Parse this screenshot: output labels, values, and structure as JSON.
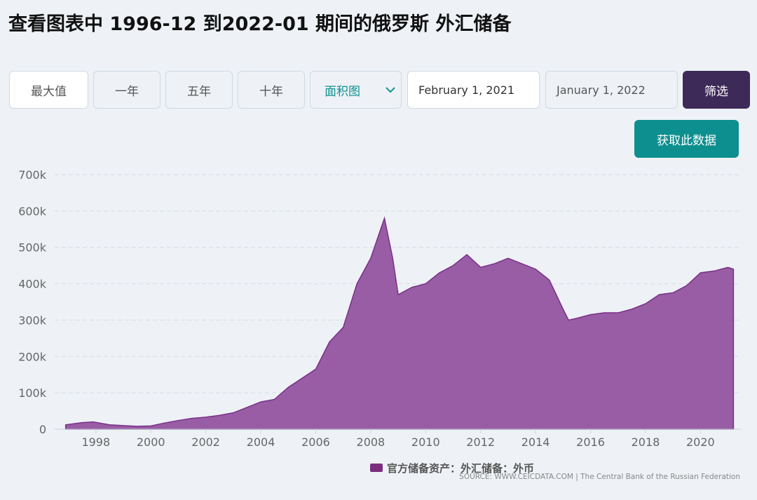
{
  "header": {
    "title": "查看图表中 1996-12 到2022-01 期间的俄罗斯 外汇储备"
  },
  "controls": {
    "buttons": [
      "最大值",
      "一年",
      "五年",
      "十年"
    ],
    "chart_type": "面积图",
    "date_from": "February 1, 2021",
    "date_to": "January 1, 2022",
    "filter": "筛选",
    "get_data": "获取此数据"
  },
  "chart_data": {
    "type": "area",
    "color": "#8e4c9c",
    "line_color": "#7a3088",
    "grid": true,
    "x": [
      1996.9,
      1997.5,
      1997.9,
      1998.5,
      1999.0,
      1999.5,
      2000.0,
      2000.5,
      2001.0,
      2001.5,
      2002.0,
      2002.5,
      2003.0,
      2003.5,
      2004.0,
      2004.5,
      2005.0,
      2005.5,
      2006.0,
      2006.5,
      2007.0,
      2007.5,
      2008.0,
      2008.5,
      2008.8,
      2009.0,
      2009.5,
      2010.0,
      2010.5,
      2011.0,
      2011.5,
      2012.0,
      2012.5,
      2013.0,
      2013.5,
      2014.0,
      2014.5,
      2015.0,
      2015.2,
      2015.5,
      2016.0,
      2016.5,
      2017.0,
      2017.5,
      2018.0,
      2018.5,
      2019.0,
      2019.5,
      2020.0,
      2020.5,
      2021.0,
      2021.2
    ],
    "series": [
      {
        "name": "官方储备资产：外汇储备：外币",
        "color": "#7b2d7f",
        "values": [
          12000,
          18000,
          20000,
          12000,
          10000,
          8000,
          9000,
          17000,
          24000,
          30000,
          33000,
          38000,
          45000,
          60000,
          75000,
          82000,
          115000,
          140000,
          165000,
          240000,
          280000,
          400000,
          470000,
          580000,
          470000,
          370000,
          390000,
          400000,
          430000,
          450000,
          480000,
          445000,
          455000,
          470000,
          455000,
          440000,
          410000,
          330000,
          300000,
          305000,
          315000,
          320000,
          320000,
          330000,
          345000,
          370000,
          375000,
          395000,
          430000,
          435000,
          445000,
          440000
        ]
      }
    ],
    "xlim": [
      1996.5,
      2021.47
    ],
    "xticks": [
      1998,
      2000,
      2002,
      2004,
      2006,
      2008,
      2010,
      2012,
      2014,
      2016,
      2018,
      2020
    ],
    "ylim": [
      0,
      700000
    ],
    "yticks": [
      0,
      {
        "value": 100000,
        "label": "100k"
      },
      {
        "value": 200000,
        "label": "200k"
      },
      {
        "value": 300000,
        "label": "300k"
      },
      {
        "value": 400000,
        "label": "400k"
      },
      {
        "value": 500000,
        "label": "500k"
      },
      {
        "value": 600000,
        "label": "600k"
      },
      {
        "value": 700000,
        "label": "700k"
      }
    ],
    "source": "SOURCE: WWW.CEICDATA.COM | The Central Bank of the Russian Federation"
  }
}
